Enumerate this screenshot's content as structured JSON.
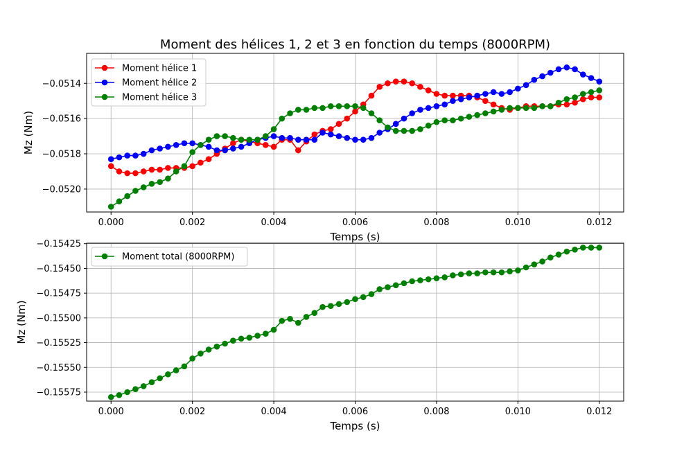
{
  "chart_data": [
    {
      "type": "line",
      "title": "Moment des hélices 1, 2 et 3 en fonction du temps (8000RPM)",
      "xlabel": "Temps (s)",
      "ylabel": "Mz (Nm)",
      "xlim": [
        -0.0006,
        0.0126
      ],
      "ylim": [
        -0.05213,
        -0.05123
      ],
      "xticks": [
        0.0,
        0.002,
        0.004,
        0.006,
        0.008,
        0.01,
        0.012
      ],
      "xtick_labels": [
        "0.000",
        "0.002",
        "0.004",
        "0.006",
        "0.008",
        "0.010",
        "0.012"
      ],
      "yticks": [
        -0.052,
        -0.0518,
        -0.0516,
        -0.0514
      ],
      "ytick_labels": [
        "−0.0520",
        "−0.0518",
        "−0.0516",
        "−0.0514"
      ],
      "grid": true,
      "legend_position": "upper-left",
      "x": [
        0.0,
        0.0002,
        0.0004,
        0.0006,
        0.0008,
        0.001,
        0.0012,
        0.0014,
        0.0016,
        0.0018,
        0.002,
        0.0022,
        0.0024,
        0.0026,
        0.0028,
        0.003,
        0.0032,
        0.0034,
        0.0036,
        0.0038,
        0.004,
        0.0042,
        0.0044,
        0.0046,
        0.0048,
        0.005,
        0.0052,
        0.0054,
        0.0056,
        0.0058,
        0.006,
        0.0062,
        0.0064,
        0.0066,
        0.0068,
        0.007,
        0.0072,
        0.0074,
        0.0076,
        0.0078,
        0.008,
        0.0082,
        0.0084,
        0.0086,
        0.0088,
        0.009,
        0.0092,
        0.0094,
        0.0096,
        0.0098,
        0.01,
        0.0102,
        0.0104,
        0.0106,
        0.0108,
        0.011,
        0.0112,
        0.0114,
        0.0116,
        0.0118,
        0.012
      ],
      "series": [
        {
          "name": "Moment hélice 1",
          "color": "#ff0000",
          "values": [
            -0.05187,
            -0.0519,
            -0.05191,
            -0.05191,
            -0.0519,
            -0.05189,
            -0.05189,
            -0.05188,
            -0.05188,
            -0.05188,
            -0.05187,
            -0.05185,
            -0.05183,
            -0.0518,
            -0.05177,
            -0.05174,
            -0.05172,
            -0.05173,
            -0.05174,
            -0.05175,
            -0.05176,
            -0.05172,
            -0.05172,
            -0.05178,
            -0.05173,
            -0.05169,
            -0.05167,
            -0.05166,
            -0.05163,
            -0.0516,
            -0.05156,
            -0.05152,
            -0.05147,
            -0.05142,
            -0.0514,
            -0.05139,
            -0.05139,
            -0.0514,
            -0.05142,
            -0.05144,
            -0.05146,
            -0.05147,
            -0.05147,
            -0.05147,
            -0.05147,
            -0.05148,
            -0.0515,
            -0.05152,
            -0.05154,
            -0.05155,
            -0.05154,
            -0.05153,
            -0.05153,
            -0.05153,
            -0.05153,
            -0.05152,
            -0.05152,
            -0.05151,
            -0.05149,
            -0.05148,
            -0.05148
          ]
        },
        {
          "name": "Moment hélice 2",
          "color": "#0000ff",
          "values": [
            -0.05183,
            -0.05182,
            -0.05181,
            -0.05181,
            -0.0518,
            -0.05178,
            -0.05177,
            -0.05176,
            -0.05175,
            -0.05174,
            -0.05174,
            -0.05175,
            -0.05176,
            -0.05178,
            -0.05178,
            -0.05177,
            -0.05176,
            -0.05174,
            -0.05172,
            -0.05171,
            -0.0517,
            -0.05171,
            -0.05171,
            -0.05172,
            -0.05172,
            -0.05172,
            -0.05168,
            -0.05169,
            -0.0517,
            -0.05171,
            -0.05172,
            -0.05172,
            -0.05171,
            -0.05168,
            -0.05166,
            -0.05163,
            -0.0516,
            -0.05157,
            -0.05155,
            -0.05154,
            -0.05153,
            -0.05152,
            -0.0515,
            -0.05149,
            -0.05148,
            -0.05147,
            -0.05146,
            -0.05145,
            -0.05146,
            -0.05145,
            -0.05143,
            -0.05141,
            -0.05138,
            -0.05136,
            -0.05134,
            -0.05132,
            -0.05131,
            -0.05132,
            -0.05135,
            -0.05137,
            -0.05139
          ]
        },
        {
          "name": "Moment hélice 3",
          "color": "#008000",
          "values": [
            -0.0521,
            -0.05207,
            -0.05204,
            -0.05201,
            -0.05199,
            -0.05197,
            -0.05196,
            -0.05194,
            -0.0519,
            -0.05187,
            -0.05179,
            -0.05175,
            -0.05172,
            -0.0517,
            -0.0517,
            -0.05171,
            -0.05172,
            -0.05172,
            -0.05172,
            -0.0517,
            -0.05166,
            -0.0516,
            -0.05157,
            -0.05155,
            -0.05155,
            -0.05154,
            -0.05154,
            -0.05153,
            -0.05153,
            -0.05153,
            -0.05153,
            -0.05154,
            -0.05157,
            -0.05161,
            -0.05165,
            -0.05167,
            -0.05167,
            -0.05167,
            -0.05166,
            -0.05164,
            -0.05162,
            -0.05161,
            -0.05161,
            -0.0516,
            -0.05159,
            -0.05158,
            -0.05157,
            -0.05156,
            -0.05155,
            -0.05154,
            -0.05154,
            -0.05154,
            -0.05154,
            -0.05153,
            -0.05153,
            -0.05151,
            -0.05149,
            -0.05148,
            -0.05146,
            -0.05145,
            -0.05144
          ]
        }
      ]
    },
    {
      "type": "line",
      "title": "",
      "xlabel": "Temps (s)",
      "ylabel": "Mz (Nm)",
      "xlim": [
        -0.0006,
        0.0126
      ],
      "ylim": [
        -0.155841,
        -0.154245
      ],
      "xticks": [
        0.0,
        0.002,
        0.004,
        0.006,
        0.008,
        0.01,
        0.012
      ],
      "xtick_labels": [
        "0.000",
        "0.002",
        "0.004",
        "0.006",
        "0.008",
        "0.010",
        "0.012"
      ],
      "yticks": [
        -0.15575,
        -0.1555,
        -0.15525,
        -0.155,
        -0.15475,
        -0.1545,
        -0.15425
      ],
      "ytick_labels": [
        "−0.15575",
        "−0.15550",
        "−0.15525",
        "−0.15500",
        "−0.15475",
        "−0.15450",
        "−0.15425"
      ],
      "grid": true,
      "legend_position": "upper-left",
      "x": [
        0.0,
        0.0002,
        0.0004,
        0.0006,
        0.0008,
        0.001,
        0.0012,
        0.0014,
        0.0016,
        0.0018,
        0.002,
        0.0022,
        0.0024,
        0.0026,
        0.0028,
        0.003,
        0.0032,
        0.0034,
        0.0036,
        0.0038,
        0.004,
        0.0042,
        0.0044,
        0.0046,
        0.0048,
        0.005,
        0.0052,
        0.0054,
        0.0056,
        0.0058,
        0.006,
        0.0062,
        0.0064,
        0.0066,
        0.0068,
        0.007,
        0.0072,
        0.0074,
        0.0076,
        0.0078,
        0.008,
        0.0082,
        0.0084,
        0.0086,
        0.0088,
        0.009,
        0.0092,
        0.0094,
        0.0096,
        0.0098,
        0.01,
        0.0102,
        0.0104,
        0.0106,
        0.0108,
        0.011,
        0.0112,
        0.0114,
        0.0116,
        0.0118,
        0.012
      ],
      "series": [
        {
          "name": "Moment total (8000RPM)",
          "color": "#008000",
          "values": [
            -0.1558,
            -0.15578,
            -0.15575,
            -0.15572,
            -0.15569,
            -0.15565,
            -0.15561,
            -0.15557,
            -0.15553,
            -0.15549,
            -0.15541,
            -0.15536,
            -0.15532,
            -0.15529,
            -0.15526,
            -0.15523,
            -0.15521,
            -0.1552,
            -0.15518,
            -0.15516,
            -0.15512,
            -0.15503,
            -0.15501,
            -0.15505,
            -0.15499,
            -0.15495,
            -0.15489,
            -0.15488,
            -0.15486,
            -0.15484,
            -0.15481,
            -0.15479,
            -0.15476,
            -0.15471,
            -0.15469,
            -0.15467,
            -0.15465,
            -0.15463,
            -0.15462,
            -0.15461,
            -0.1546,
            -0.15459,
            -0.15457,
            -0.15456,
            -0.15455,
            -0.15455,
            -0.15454,
            -0.15454,
            -0.15454,
            -0.15453,
            -0.15452,
            -0.15449,
            -0.15446,
            -0.15443,
            -0.15439,
            -0.15436,
            -0.15433,
            -0.15431,
            -0.15429,
            -0.15429,
            -0.15429
          ]
        }
      ]
    }
  ]
}
